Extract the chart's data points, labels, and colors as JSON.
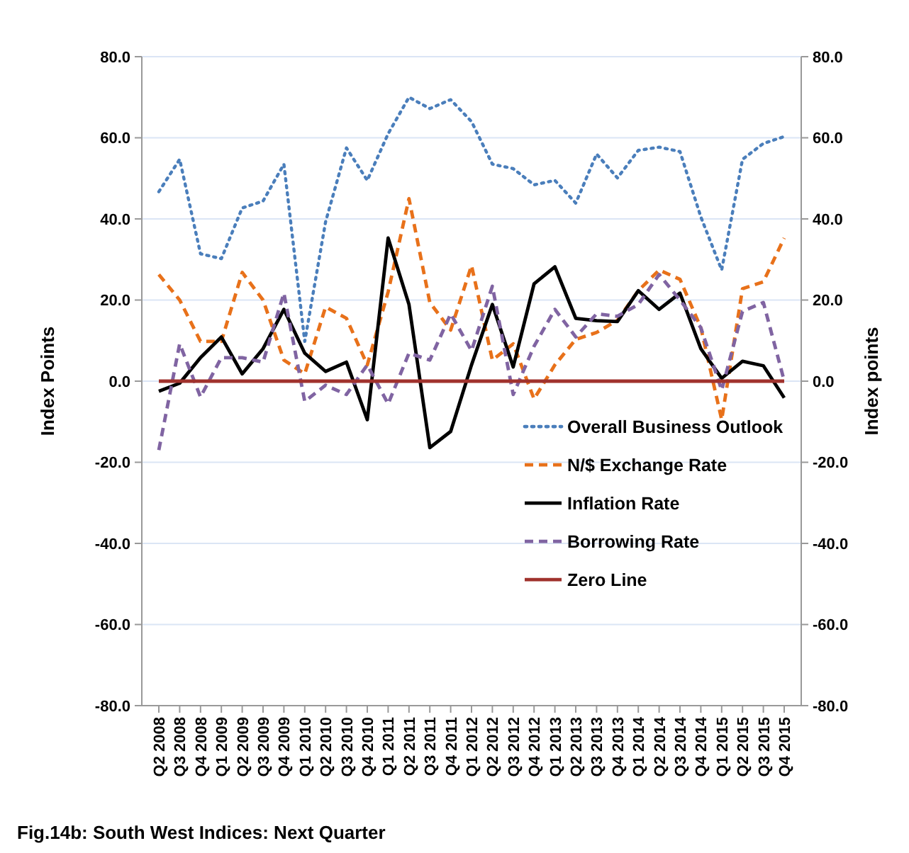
{
  "chart_data": {
    "type": "line",
    "title": "Fig.14b: South West  Indices: Next Quarter",
    "ylabel": "Index Points",
    "y2label": "Index points",
    "categories": [
      "Q2 2008",
      "Q3 2008",
      "Q4 2008",
      "Q1 2009",
      "Q2 2009",
      "Q3 2009",
      "Q4 2009",
      "Q1 2010",
      "Q2 2010",
      "Q3 2010",
      "Q4 2010",
      "Q1 2011",
      "Q2 2011",
      "Q3 2011",
      "Q4 2011",
      "Q1 2012",
      "Q2 2012",
      "Q3 2012",
      "Q4 2012",
      "Q1 2013",
      "Q2 2013",
      "Q3 2013",
      "Q4 2013",
      "Q1 2014",
      "Q2 2014",
      "Q3 2014",
      "Q4 2014",
      "Q1 2015",
      "Q2 2015",
      "Q3 2015",
      "Q4 2015"
    ],
    "series": [
      {
        "name": "Overall Business Outlook",
        "color": "#4a7ebb",
        "line_style": "dotted",
        "values": [
          46.7,
          54.7,
          31.4,
          30.2,
          42.7,
          44.4,
          53.5,
          9.8,
          39.3,
          57.5,
          49.5,
          61,
          70,
          67.2,
          69.4,
          64,
          53.5,
          52.4,
          48.4,
          49.5,
          43.9,
          56,
          50.1,
          56.9,
          57.7,
          56.6,
          40.5,
          27.4,
          54.7,
          58.6,
          60.3
        ]
      },
      {
        "name": "N/$ Exchange Rate",
        "color": "#e8711a",
        "line_style": "dashed",
        "values": [
          26.3,
          20,
          9.8,
          9.8,
          26.8,
          20,
          5.2,
          1.8,
          18.3,
          15.5,
          4,
          22,
          45,
          19.4,
          12.6,
          28.5,
          5.2,
          9.2,
          -4.4,
          4,
          10.3,
          12,
          15,
          22.3,
          27.4,
          25.1,
          13.2,
          -9.5,
          22.8,
          24.5,
          35.3
        ]
      },
      {
        "name": "Inflation Rate",
        "color": "#000000",
        "line_style": "solid",
        "values": [
          -2.5,
          -0.5,
          5.8,
          10.9,
          1.8,
          8,
          17.7,
          6.9,
          2.4,
          4.7,
          -9.5,
          35.3,
          18.9,
          -16.4,
          -12.4,
          4,
          18.9,
          3.5,
          24,
          28.2,
          15.5,
          14.9,
          14.7,
          22.3,
          17.7,
          21.7,
          8,
          0.7,
          4.9,
          3.8,
          -4.1
        ]
      },
      {
        "name": "Borrowing Rate",
        "color": "#8064a2",
        "line_style": "dashed",
        "values": [
          -17,
          9.2,
          -3.9,
          5.8,
          5.8,
          4.7,
          21.7,
          -5,
          -1,
          -3.3,
          4,
          -5.6,
          6.9,
          5.2,
          16.6,
          7.5,
          23.4,
          -3.3,
          8.6,
          17.7,
          10.9,
          16.6,
          16,
          18.9,
          26.3,
          20,
          13.2,
          -2.2,
          17.2,
          19.4,
          0.1
        ]
      },
      {
        "name": "Zero Line",
        "color": "#a0322d",
        "line_style": "solid",
        "values": [
          0,
          0,
          0,
          0,
          0,
          0,
          0,
          0,
          0,
          0,
          0,
          0,
          0,
          0,
          0,
          0,
          0,
          0,
          0,
          0,
          0,
          0,
          0,
          0,
          0,
          0,
          0,
          0,
          0,
          0,
          0
        ]
      }
    ],
    "ylim": [
      -80,
      80
    ],
    "yticks": [
      {
        "value": -80,
        "label": "-80.0"
      },
      {
        "value": -60,
        "label": "-60.0"
      },
      {
        "value": -40,
        "label": "-40.0"
      },
      {
        "value": -20,
        "label": "-20.0"
      },
      {
        "value": 0,
        "label": "0.0"
      },
      {
        "value": 20,
        "label": "20.0"
      },
      {
        "value": 40,
        "label": "40.0"
      },
      {
        "value": 60,
        "label": "60.0"
      },
      {
        "value": 80,
        "label": "80.0"
      }
    ],
    "y2lim": [
      -80,
      80
    ],
    "y2ticks": [
      {
        "value": -80,
        "label": "-80.0"
      },
      {
        "value": -60,
        "label": "-60.0"
      },
      {
        "value": -40,
        "label": "-40.0"
      },
      {
        "value": -20,
        "label": "-20.0"
      },
      {
        "value": 0,
        "label": "0.0"
      },
      {
        "value": 20,
        "label": "20.0"
      },
      {
        "value": 40,
        "label": "40.0"
      },
      {
        "value": 60,
        "label": "60.0"
      },
      {
        "value": 80,
        "label": "80.0"
      }
    ],
    "grid": "y",
    "legend": "right",
    "marker": "none"
  }
}
